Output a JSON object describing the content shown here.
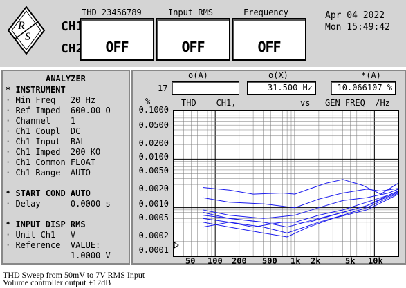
{
  "header": {
    "ch1": "CH1",
    "ch2": "CH2",
    "meters": [
      {
        "label": "THD 23456789",
        "value": "OFF"
      },
      {
        "label": "Input RMS",
        "value": "OFF"
      },
      {
        "label": "Frequency",
        "value": "OFF"
      }
    ],
    "date": "Apr 04 2022",
    "time": "Mon 15:49:42"
  },
  "analyzer": {
    "title": "ANALYZER",
    "lines": [
      "* INSTRUMENT",
      "· Min Freq   20 Hz",
      "· Ref Imped  600.00 O",
      "· Channel    1",
      "· Ch1 Coupl  DC",
      "· Ch1 Input  BAL",
      "· Ch1 Imped  200 KO",
      "· Ch1 Common FLOAT",
      "· Ch1 Range  AUTO",
      "",
      "* START COND AUTO",
      "· Delay      0.0000 s",
      "",
      "* INPUT DISP RMS",
      "· Unit Ch1   V",
      "· Reference  VALUE:",
      "             1.0000 V"
    ]
  },
  "cursor": {
    "index": "17",
    "col_a_label": "o(A)",
    "col_x_label": "o(X)",
    "col_star_label": "*(A)",
    "col_a_value": "",
    "col_x_value": "31.500  Hz",
    "col_star_value": "10.066107 %"
  },
  "plot": {
    "unit": "%",
    "y_title": "THD    CH1,",
    "vs": "vs",
    "x_title": "GEN FREQ  /Hz",
    "yticks": [
      "0.1000",
      "0.0500",
      "0.0200",
      "0.0100",
      "0.0050",
      "0.0020",
      "0.0010",
      "0.0005",
      "0.0002",
      "0.0001"
    ],
    "xticks": [
      "50",
      "100",
      "200",
      "500",
      "1k",
      "2k",
      "5k",
      "10k"
    ]
  },
  "caption": {
    "line1": "THD Sweep from 50mV to 7V RMS Input",
    "line2": "Volume controller output +12dB"
  },
  "chart_data": {
    "type": "line",
    "xlabel": "GEN FREQ  /Hz",
    "ylabel": "THD    CH1,",
    "xscale": "log",
    "yscale": "log",
    "xlim": [
      30,
      20000
    ],
    "ylim": [
      0.0001,
      0.1
    ],
    "series": [
      {
        "values": [
          [
            70,
            0.0026
          ],
          [
            150,
            0.0023
          ],
          [
            300,
            0.0019
          ],
          [
            700,
            0.002
          ],
          [
            1000,
            0.0019
          ],
          [
            1500,
            0.0024
          ],
          [
            2500,
            0.0032
          ],
          [
            4000,
            0.0038
          ],
          [
            7000,
            0.0029
          ],
          [
            12000,
            0.0019
          ],
          [
            20000,
            0.0032
          ]
        ]
      },
      {
        "values": [
          [
            70,
            0.0016
          ],
          [
            150,
            0.0013
          ],
          [
            400,
            0.0012
          ],
          [
            1000,
            0.001
          ],
          [
            2000,
            0.0015
          ],
          [
            4000,
            0.002
          ],
          [
            8000,
            0.0024
          ],
          [
            12000,
            0.0022
          ],
          [
            20000,
            0.0025
          ]
        ]
      },
      {
        "values": [
          [
            70,
            0.0009
          ],
          [
            150,
            0.0007
          ],
          [
            400,
            0.0006
          ],
          [
            1000,
            0.0007
          ],
          [
            2000,
            0.001
          ],
          [
            4000,
            0.0014
          ],
          [
            8000,
            0.0016
          ],
          [
            15000,
            0.002
          ],
          [
            20000,
            0.0024
          ]
        ]
      },
      {
        "values": [
          [
            70,
            0.0008
          ],
          [
            150,
            0.0006
          ],
          [
            400,
            0.0005
          ],
          [
            1000,
            0.0005
          ],
          [
            2000,
            0.0007
          ],
          [
            4000,
            0.0009
          ],
          [
            8000,
            0.0013
          ],
          [
            15000,
            0.0018
          ],
          [
            20000,
            0.0022
          ]
        ]
      },
      {
        "values": [
          [
            70,
            0.0007
          ],
          [
            150,
            0.0006
          ],
          [
            400,
            0.0005
          ],
          [
            800,
            0.0004
          ],
          [
            2000,
            0.0006
          ],
          [
            4000,
            0.0008
          ],
          [
            8000,
            0.0011
          ],
          [
            15000,
            0.0017
          ],
          [
            20000,
            0.0021
          ]
        ]
      },
      {
        "values": [
          [
            70,
            0.0006
          ],
          [
            150,
            0.0005
          ],
          [
            400,
            0.0004
          ],
          [
            800,
            0.0003
          ],
          [
            2000,
            0.0005
          ],
          [
            4000,
            0.0007
          ],
          [
            8000,
            0.001
          ],
          [
            15000,
            0.0016
          ],
          [
            20000,
            0.002
          ]
        ]
      },
      {
        "values": [
          [
            70,
            0.0005
          ],
          [
            150,
            0.0004
          ],
          [
            400,
            0.0003
          ],
          [
            800,
            0.00025
          ],
          [
            1500,
            0.0004
          ],
          [
            3000,
            0.0006
          ],
          [
            8000,
            0.0009
          ],
          [
            15000,
            0.0015
          ],
          [
            20000,
            0.0019
          ]
        ]
      },
      {
        "values": [
          [
            70,
            0.0004
          ],
          [
            150,
            0.0005
          ],
          [
            300,
            0.0004
          ],
          [
            700,
            0.0005
          ],
          [
            1500,
            0.0005
          ],
          [
            3000,
            0.0007
          ],
          [
            8000,
            0.0011
          ],
          [
            15000,
            0.0018
          ],
          [
            20000,
            0.0022
          ]
        ]
      }
    ]
  }
}
